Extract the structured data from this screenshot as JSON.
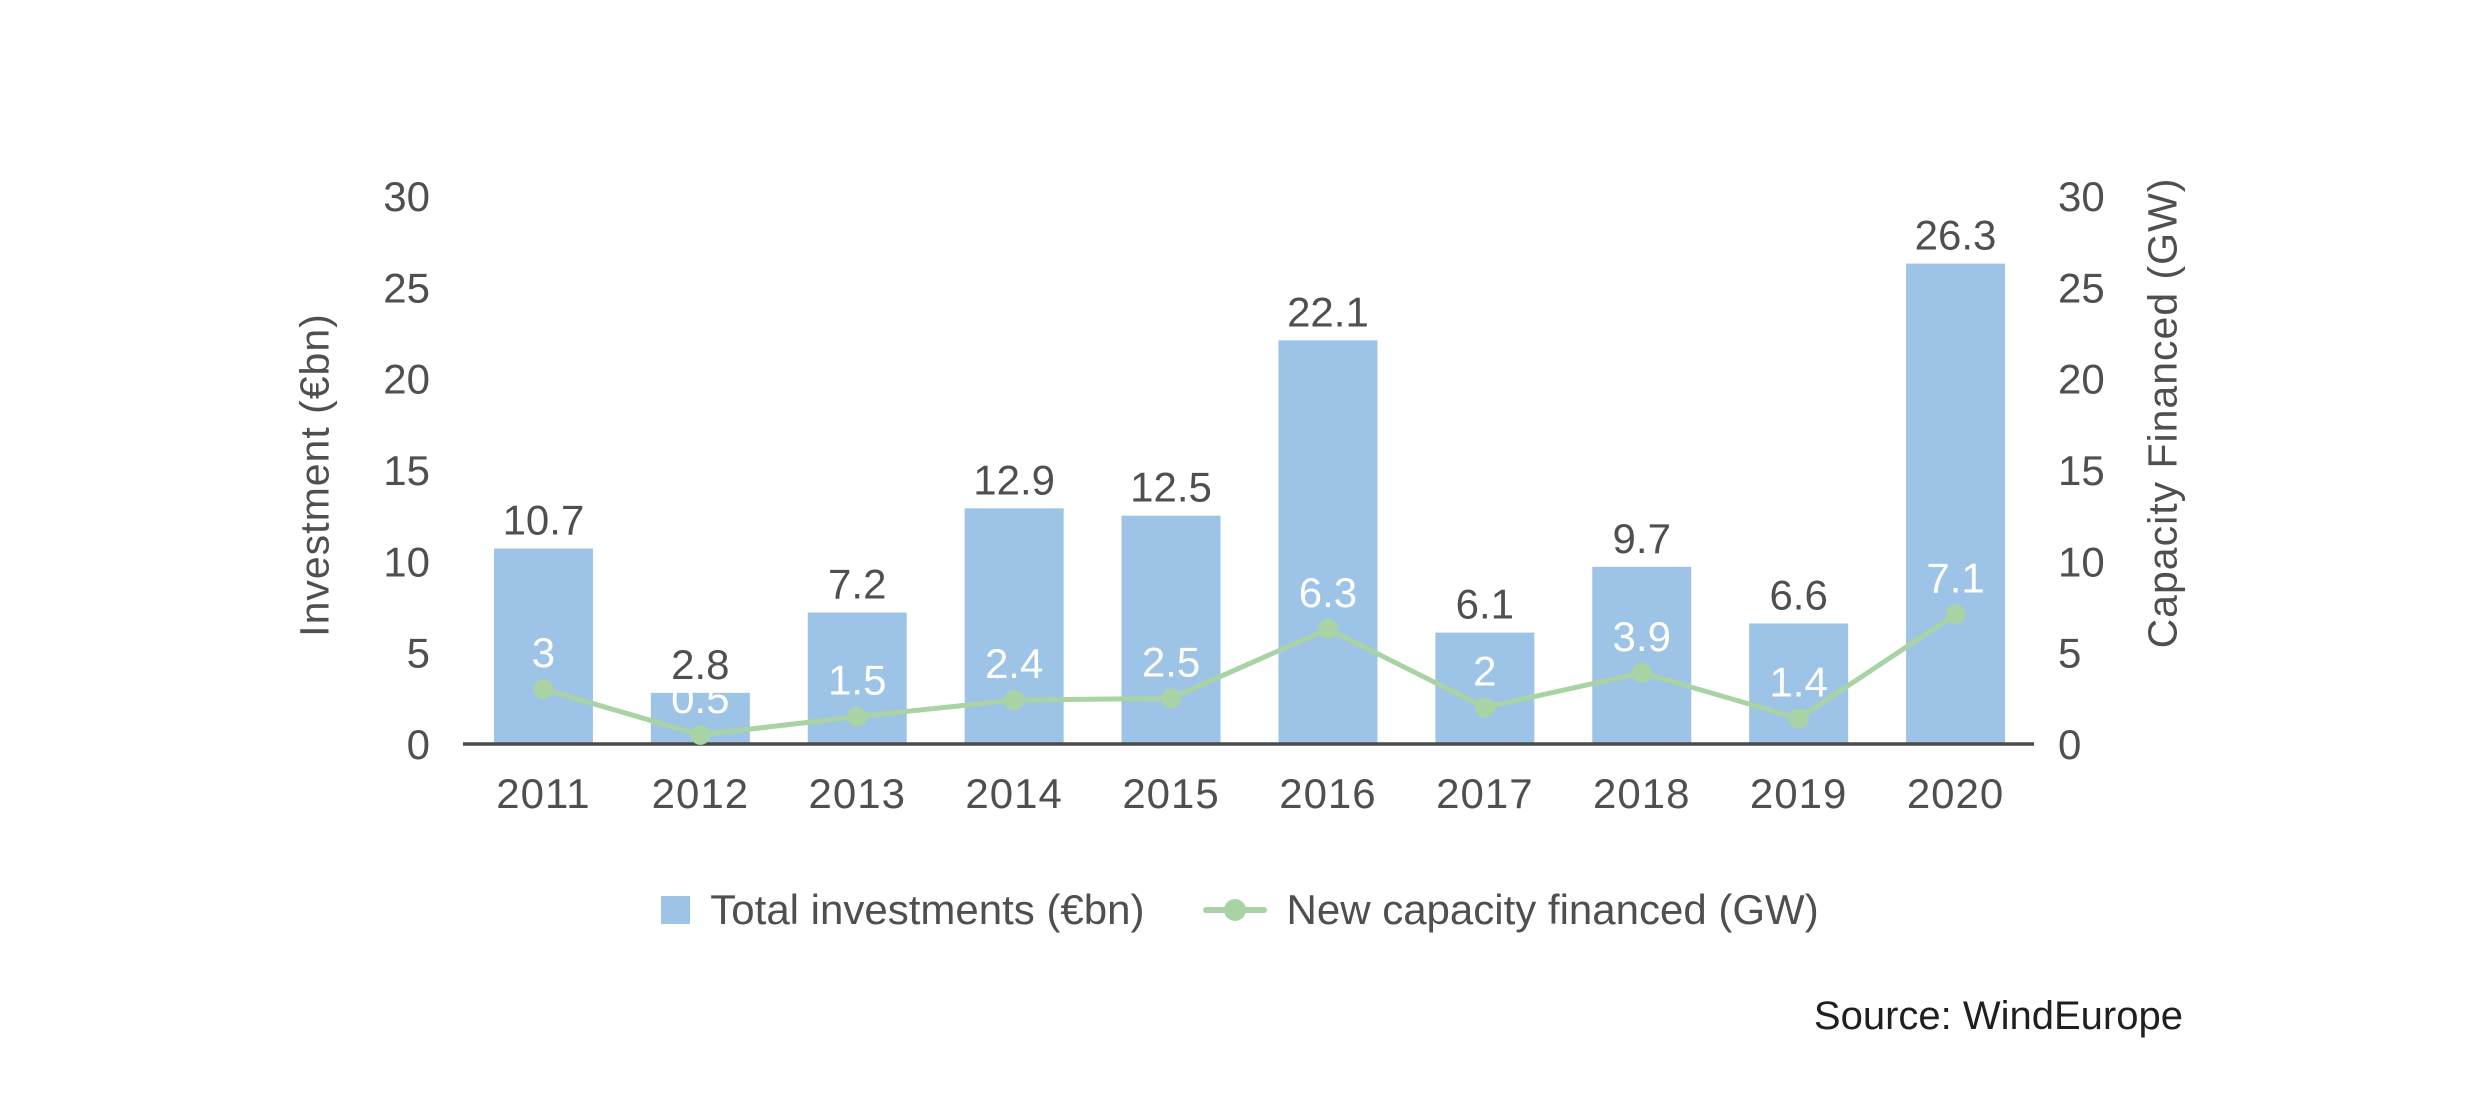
{
  "chart_data": {
    "type": "bar+line",
    "categories": [
      "2011",
      "2012",
      "2013",
      "2014",
      "2015",
      "2016",
      "2017",
      "2018",
      "2019",
      "2020"
    ],
    "series": [
      {
        "name": "Total investments (€bn)",
        "type": "bar",
        "color": "#9DC3E6",
        "label_color": "#4f4f4f",
        "values": [
          10.7,
          2.8,
          7.2,
          12.9,
          12.5,
          22.1,
          6.1,
          9.7,
          6.6,
          26.3
        ]
      },
      {
        "name": "New capacity financed (GW)",
        "type": "line",
        "color": "#A9D3A4",
        "label_color": "#ffffff",
        "values": [
          3,
          0.5,
          1.5,
          2.4,
          2.5,
          6.3,
          2,
          3.9,
          1.4,
          7.1
        ]
      }
    ],
    "y_left": {
      "label": "Investment (€bn)",
      "ticks": [
        0,
        5,
        10,
        15,
        20,
        25,
        30
      ],
      "range": [
        0,
        30
      ]
    },
    "y_right": {
      "label": "Capacity Financed (GW)",
      "ticks": [
        0,
        5,
        10,
        15,
        20,
        25,
        30
      ],
      "range": [
        0,
        30
      ]
    },
    "grid": "off",
    "legend_position": "bottom-center",
    "axis_color": "#4a4a4a",
    "tick_color": "#4f4f4f",
    "source": "Source: WindEurope"
  }
}
